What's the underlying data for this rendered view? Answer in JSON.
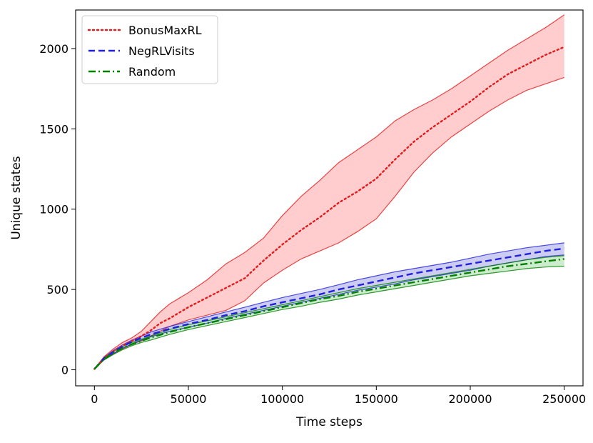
{
  "chart_data": {
    "type": "line",
    "title": "",
    "xlabel": "Time steps",
    "ylabel": "Unique states",
    "xlim": [
      -10000,
      260000
    ],
    "ylim": [
      -100,
      2240
    ],
    "xticks": [
      0,
      50000,
      100000,
      150000,
      200000,
      250000
    ],
    "xtick_labels": [
      "0",
      "50000",
      "100000",
      "150000",
      "200000",
      "250000"
    ],
    "yticks": [
      0,
      500,
      1000,
      1500,
      2000
    ],
    "ytick_labels": [
      "0",
      "500",
      "1000",
      "1500",
      "2000"
    ],
    "grid": false,
    "legend_position": "top-left",
    "series": [
      {
        "name": "BonusMaxRL",
        "color": "#e41a1c",
        "fill": "#ffc4c4",
        "line_style": "dotted",
        "x": [
          0,
          5000,
          10000,
          15000,
          20000,
          25000,
          30000,
          35000,
          40000,
          50000,
          60000,
          70000,
          80000,
          90000,
          100000,
          110000,
          120000,
          130000,
          140000,
          150000,
          160000,
          170000,
          180000,
          190000,
          200000,
          210000,
          220000,
          230000,
          240000,
          250000
        ],
        "mean": [
          5,
          70,
          115,
          150,
          180,
          210,
          245,
          290,
          320,
          390,
          450,
          510,
          570,
          680,
          780,
          870,
          950,
          1040,
          1110,
          1190,
          1310,
          1420,
          1510,
          1590,
          1670,
          1760,
          1840,
          1900,
          1960,
          2010
        ],
        "upper": [
          5,
          80,
          130,
          170,
          200,
          240,
          300,
          360,
          410,
          480,
          560,
          660,
          730,
          820,
          960,
          1080,
          1180,
          1290,
          1370,
          1450,
          1550,
          1620,
          1680,
          1750,
          1830,
          1910,
          1990,
          2060,
          2130,
          2210
        ],
        "lower": [
          5,
          60,
          100,
          130,
          160,
          180,
          210,
          240,
          270,
          310,
          340,
          370,
          430,
          540,
          620,
          690,
          740,
          790,
          860,
          940,
          1080,
          1230,
          1350,
          1450,
          1530,
          1610,
          1680,
          1740,
          1780,
          1820
        ]
      },
      {
        "name": "NegRLVisits",
        "color": "#1f1fe0",
        "fill": "#c4c4f0",
        "line_style": "dashed",
        "x": [
          0,
          5000,
          10000,
          15000,
          20000,
          25000,
          30000,
          40000,
          50000,
          60000,
          70000,
          80000,
          90000,
          100000,
          110000,
          120000,
          130000,
          140000,
          150000,
          160000,
          170000,
          180000,
          190000,
          200000,
          210000,
          220000,
          230000,
          240000,
          250000
        ],
        "mean": [
          5,
          70,
          110,
          145,
          175,
          200,
          220,
          255,
          285,
          310,
          340,
          365,
          395,
          420,
          445,
          470,
          500,
          525,
          550,
          575,
          600,
          620,
          640,
          660,
          680,
          700,
          720,
          740,
          755
        ],
        "upper": [
          5,
          75,
          120,
          155,
          185,
          210,
          235,
          270,
          300,
          330,
          360,
          390,
          420,
          450,
          475,
          500,
          530,
          560,
          585,
          610,
          630,
          650,
          670,
          695,
          720,
          740,
          760,
          775,
          790
        ],
        "lower": [
          5,
          65,
          100,
          135,
          160,
          185,
          205,
          240,
          265,
          290,
          320,
          345,
          370,
          395,
          420,
          445,
          470,
          495,
          515,
          535,
          560,
          580,
          600,
          620,
          645,
          665,
          685,
          705,
          715
        ]
      },
      {
        "name": "Random",
        "color": "#008000",
        "fill": "#c4e8c4",
        "line_style": "dashdot",
        "x": [
          0,
          5000,
          10000,
          15000,
          20000,
          25000,
          30000,
          40000,
          50000,
          60000,
          70000,
          80000,
          90000,
          100000,
          110000,
          120000,
          130000,
          140000,
          150000,
          160000,
          170000,
          180000,
          190000,
          200000,
          210000,
          220000,
          230000,
          240000,
          250000
        ],
        "mean": [
          5,
          65,
          105,
          135,
          160,
          180,
          200,
          235,
          265,
          290,
          315,
          340,
          365,
          390,
          415,
          440,
          460,
          485,
          505,
          525,
          545,
          565,
          585,
          605,
          625,
          645,
          660,
          675,
          690
        ],
        "upper": [
          5,
          70,
          115,
          145,
          170,
          190,
          210,
          250,
          280,
          305,
          330,
          355,
          380,
          405,
          430,
          455,
          480,
          505,
          525,
          545,
          565,
          585,
          605,
          625,
          645,
          665,
          685,
          700,
          710
        ],
        "lower": [
          5,
          60,
          95,
          125,
          150,
          170,
          185,
          220,
          250,
          275,
          300,
          325,
          350,
          375,
          395,
          420,
          440,
          465,
          485,
          505,
          525,
          545,
          565,
          585,
          600,
          615,
          630,
          640,
          645
        ]
      }
    ]
  }
}
